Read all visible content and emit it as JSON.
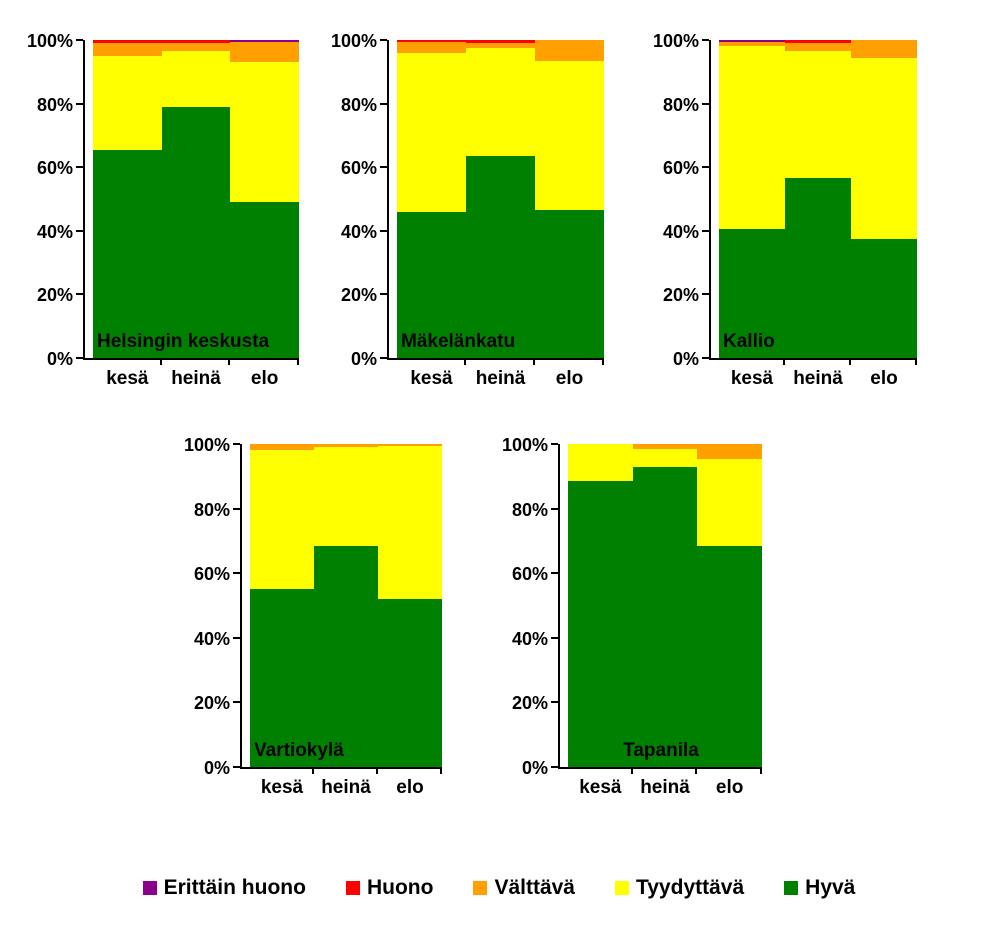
{
  "legend": {
    "items": [
      {
        "label": "Erittäin huono",
        "color": "#8B008B"
      },
      {
        "label": "Huono",
        "color": "#FF0000"
      },
      {
        "label": "Välttävä",
        "color": "#FFA000"
      },
      {
        "label": "Tyydyttävä",
        "color": "#FFFF00"
      },
      {
        "label": "Hyvä",
        "color": "#008000"
      }
    ]
  },
  "axis": {
    "yticks": [
      "100%",
      "80%",
      "60%",
      "40%",
      "20%",
      "0%"
    ],
    "ytick_values": [
      100,
      80,
      60,
      40,
      20,
      0
    ],
    "ylim": [
      0,
      100
    ]
  },
  "chart_data": [
    {
      "type": "bar",
      "stacked": true,
      "units": "percent",
      "title": "Helsingin keskusta",
      "title_position": "left",
      "categories": [
        "kesä",
        "heinä",
        "elo"
      ],
      "series": [
        {
          "name": "Hyvä",
          "color": "#008000",
          "values": [
            65.5,
            79.0,
            49.0
          ]
        },
        {
          "name": "Tyydyttävä",
          "color": "#FFFF00",
          "values": [
            29.5,
            17.5,
            44.0
          ]
        },
        {
          "name": "Välttävä",
          "color": "#FFA000",
          "values": [
            4.0,
            2.5,
            6.5
          ]
        },
        {
          "name": "Huono",
          "color": "#FF0000",
          "values": [
            1.0,
            1.0,
            0.0
          ]
        },
        {
          "name": "Erittäin huono",
          "color": "#8B008B",
          "values": [
            0.0,
            0.0,
            0.5
          ]
        }
      ],
      "ylim": [
        0,
        100
      ],
      "grid": false,
      "legend_position": "bottom-shared"
    },
    {
      "type": "bar",
      "stacked": true,
      "units": "percent",
      "title": "Mäkelänkatu",
      "title_position": "left",
      "categories": [
        "kesä",
        "heinä",
        "elo"
      ],
      "series": [
        {
          "name": "Hyvä",
          "color": "#008000",
          "values": [
            46.0,
            63.5,
            46.5
          ]
        },
        {
          "name": "Tyydyttävä",
          "color": "#FFFF00",
          "values": [
            50.0,
            34.0,
            47.0
          ]
        },
        {
          "name": "Välttävä",
          "color": "#FFA000",
          "values": [
            3.5,
            1.5,
            6.5
          ]
        },
        {
          "name": "Huono",
          "color": "#FF0000",
          "values": [
            0.5,
            1.0,
            0.0
          ]
        },
        {
          "name": "Erittäin huono",
          "color": "#8B008B",
          "values": [
            0.0,
            0.0,
            0.0
          ]
        }
      ],
      "ylim": [
        0,
        100
      ],
      "grid": false,
      "legend_position": "bottom-shared"
    },
    {
      "type": "bar",
      "stacked": true,
      "units": "percent",
      "title": "Kallio",
      "title_position": "left",
      "categories": [
        "kesä",
        "heinä",
        "elo"
      ],
      "series": [
        {
          "name": "Hyvä",
          "color": "#008000",
          "values": [
            40.5,
            56.5,
            37.5
          ]
        },
        {
          "name": "Tyydyttävä",
          "color": "#FFFF00",
          "values": [
            57.5,
            40.0,
            57.0
          ]
        },
        {
          "name": "Välttävä",
          "color": "#FFA000",
          "values": [
            1.5,
            2.5,
            5.5
          ]
        },
        {
          "name": "Huono",
          "color": "#FF0000",
          "values": [
            0.0,
            1.0,
            0.0
          ]
        },
        {
          "name": "Erittäin huono",
          "color": "#8B008B",
          "values": [
            0.5,
            0.0,
            0.0
          ]
        }
      ],
      "ylim": [
        0,
        100
      ],
      "grid": false,
      "legend_position": "bottom-shared"
    },
    {
      "type": "bar",
      "stacked": true,
      "units": "percent",
      "title": "Vartiokylä",
      "title_position": "left",
      "categories": [
        "kesä",
        "heinä",
        "elo"
      ],
      "series": [
        {
          "name": "Hyvä",
          "color": "#008000",
          "values": [
            55.0,
            68.5,
            52.0
          ]
        },
        {
          "name": "Tyydyttävä",
          "color": "#FFFF00",
          "values": [
            43.0,
            30.5,
            47.5
          ]
        },
        {
          "name": "Välttävä",
          "color": "#FFA000",
          "values": [
            2.0,
            1.0,
            0.5
          ]
        },
        {
          "name": "Huono",
          "color": "#FF0000",
          "values": [
            0.0,
            0.0,
            0.0
          ]
        },
        {
          "name": "Erittäin huono",
          "color": "#8B008B",
          "values": [
            0.0,
            0.0,
            0.0
          ]
        }
      ],
      "ylim": [
        0,
        100
      ],
      "grid": false,
      "legend_position": "bottom-shared"
    },
    {
      "type": "bar",
      "stacked": true,
      "units": "percent",
      "title": "Tapanila",
      "title_position": "center",
      "categories": [
        "kesä",
        "heinä",
        "elo"
      ],
      "series": [
        {
          "name": "Hyvä",
          "color": "#008000",
          "values": [
            88.5,
            93.0,
            68.5
          ]
        },
        {
          "name": "Tyydyttävä",
          "color": "#FFFF00",
          "values": [
            11.5,
            5.5,
            27.0
          ]
        },
        {
          "name": "Välttävä",
          "color": "#FFA000",
          "values": [
            0.0,
            1.5,
            4.5
          ]
        },
        {
          "name": "Huono",
          "color": "#FF0000",
          "values": [
            0.0,
            0.0,
            0.0
          ]
        },
        {
          "name": "Erittäin huono",
          "color": "#8B008B",
          "values": [
            0.0,
            0.0,
            0.0
          ]
        }
      ],
      "ylim": [
        0,
        100
      ],
      "grid": false,
      "legend_position": "bottom-shared"
    }
  ]
}
